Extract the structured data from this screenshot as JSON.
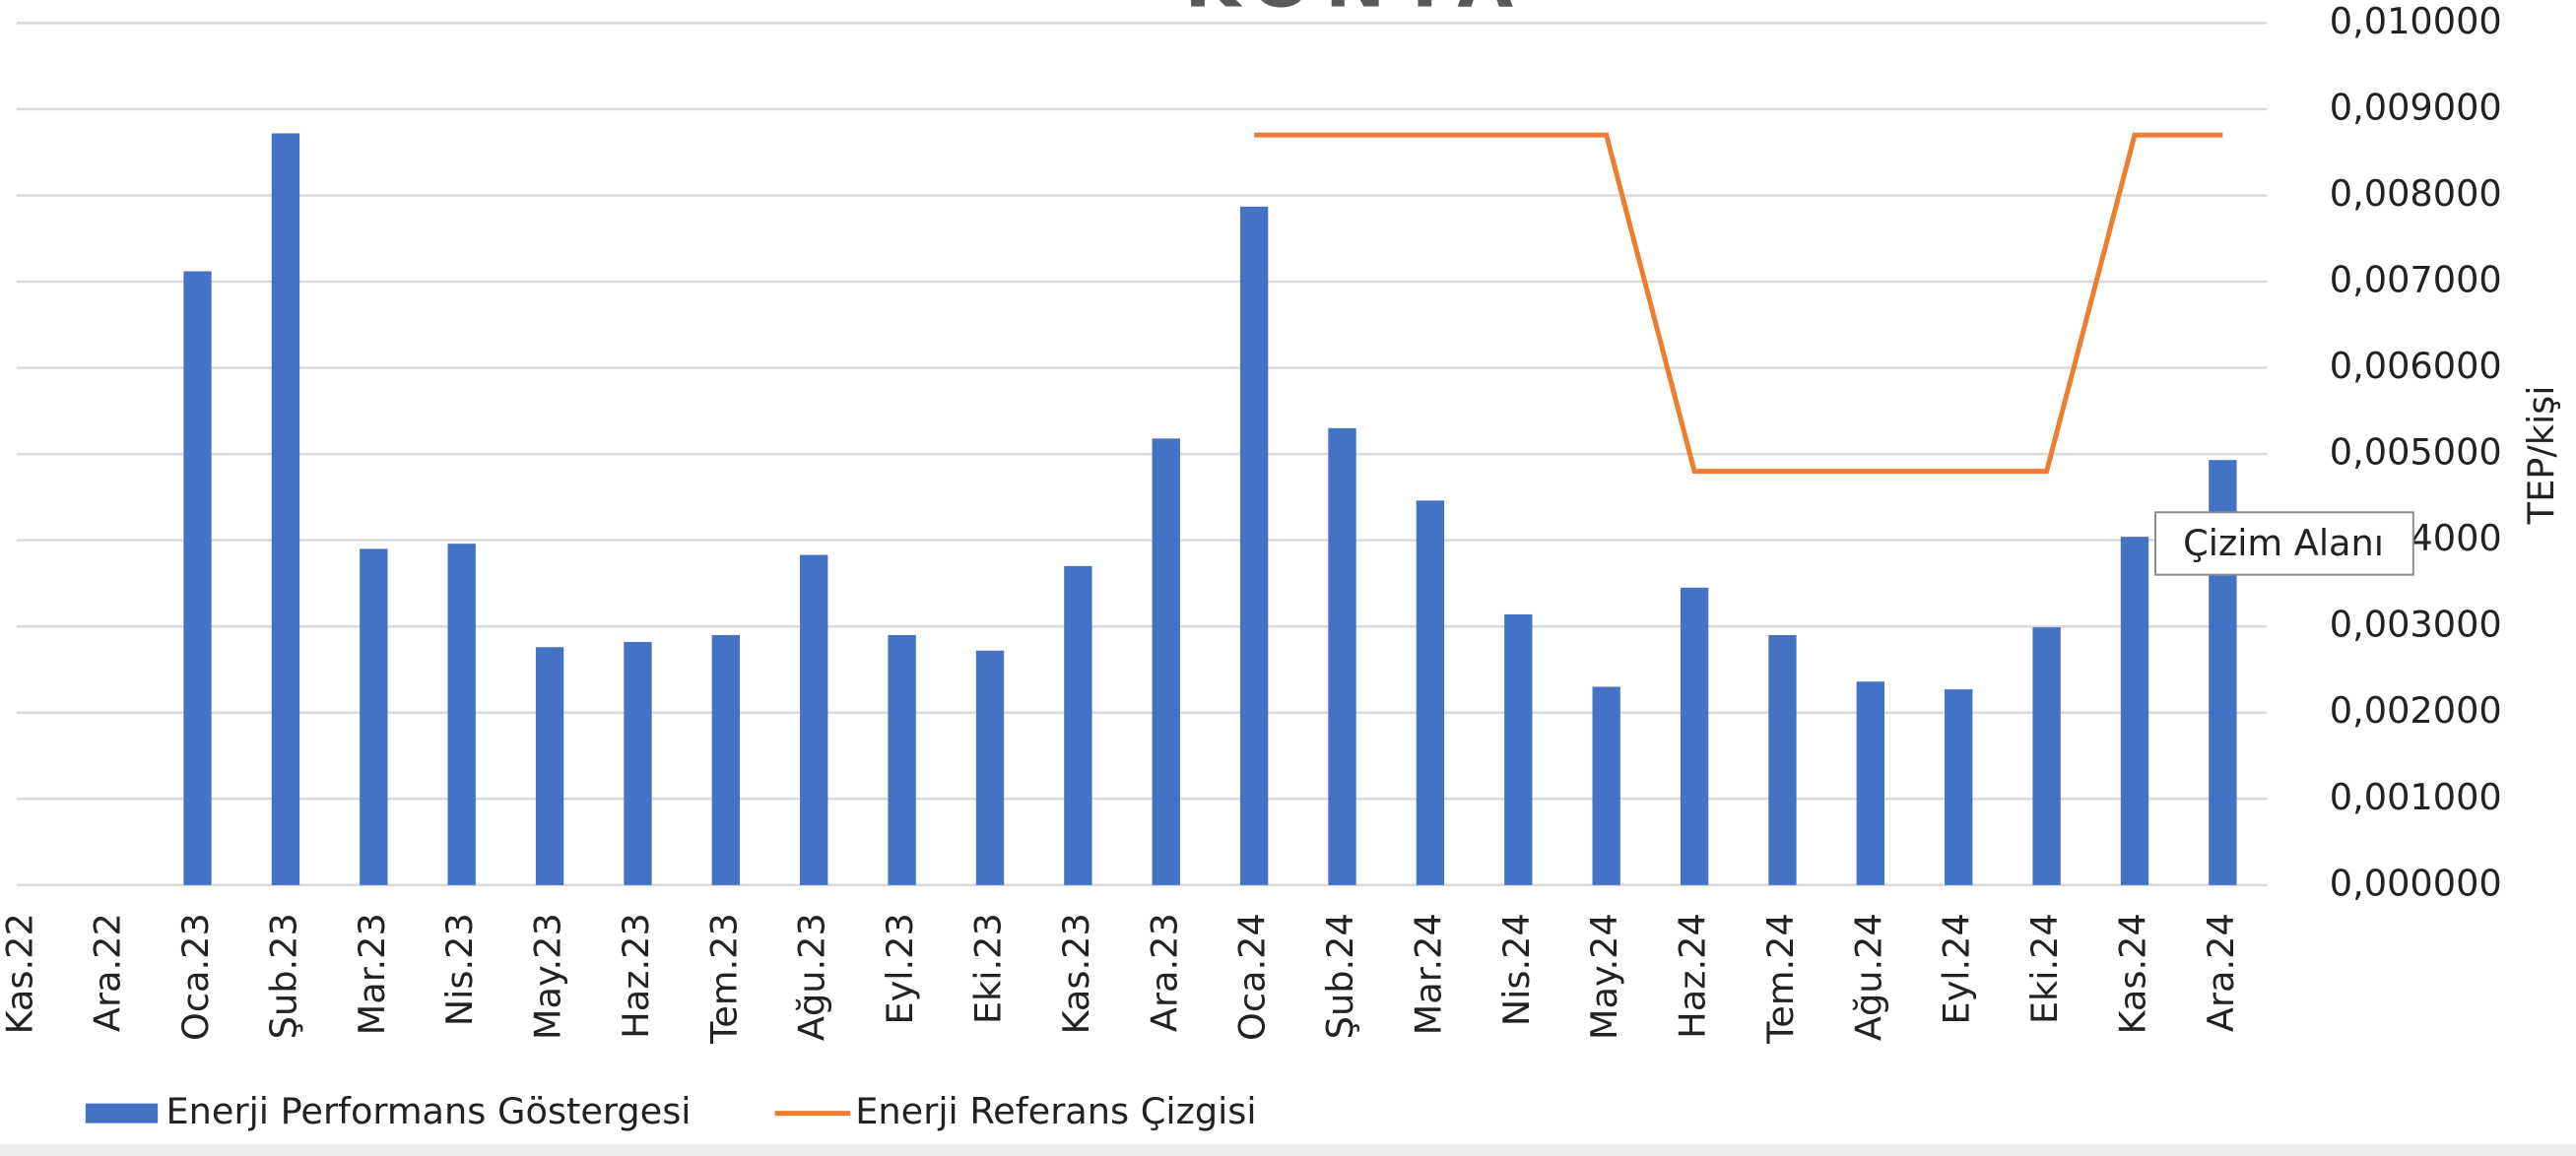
{
  "chart_data": {
    "type": "bar",
    "title": "KONYA",
    "y_label": "TEP/kişi",
    "categories": [
      "Kas.22",
      "Ara.22",
      "Oca.23",
      "Şub.23",
      "Mar.23",
      "Nis.23",
      "May.23",
      "Haz.23",
      "Tem.23",
      "Ağu.23",
      "Eyl.23",
      "Eki.23",
      "Kas.23",
      "Ara.23",
      "Oca.24",
      "Şub.24",
      "Mar.24",
      "Nis.24",
      "May.24",
      "Haz.24",
      "Tem.24",
      "Ağu.24",
      "Eyl.24",
      "Eki.24",
      "Kas.24",
      "Ara.24"
    ],
    "series": [
      {
        "name": "Enerji Performans Göstergesi",
        "type": "bar",
        "color": "#4472c4",
        "values": [
          null,
          null,
          0.00712,
          0.00872,
          0.0039,
          0.00396,
          0.00276,
          0.00282,
          0.0029,
          0.00383,
          0.0029,
          0.00272,
          0.0037,
          0.00518,
          0.00787,
          0.0053,
          0.00446,
          0.00314,
          0.0023,
          0.00345,
          0.0029,
          0.00236,
          0.00227,
          0.00299,
          0.00404,
          0.00493
        ]
      },
      {
        "name": "Enerji Referans Çizgisi",
        "type": "line",
        "color": "#ed7d31",
        "values": [
          null,
          null,
          null,
          null,
          null,
          null,
          null,
          null,
          null,
          null,
          null,
          null,
          null,
          null,
          0.0087,
          0.0087,
          0.0087,
          0.0087,
          0.0087,
          0.0048,
          0.0048,
          0.0048,
          0.0048,
          0.0048,
          0.0087,
          0.0087
        ]
      }
    ],
    "ylim": [
      0,
      0.01
    ],
    "yticks": [
      {
        "value": 0,
        "label": "0,000000"
      },
      {
        "value": 0.001,
        "label": "0,001000"
      },
      {
        "value": 0.002,
        "label": "0,002000"
      },
      {
        "value": 0.003,
        "label": "0,003000"
      },
      {
        "value": 0.004,
        "label": "0,004000"
      },
      {
        "value": 0.005,
        "label": "0,005000"
      },
      {
        "value": 0.006,
        "label": "0,006000"
      },
      {
        "value": 0.007,
        "label": "0,007000"
      },
      {
        "value": 0.008,
        "label": "0,008000"
      },
      {
        "value": 0.009,
        "label": "0,009000"
      },
      {
        "value": 0.01,
        "label": "0,010000"
      }
    ],
    "grid": true,
    "y_axis_side": "right",
    "legend": "bottom-left",
    "tooltip": "Çizim Alanı"
  }
}
